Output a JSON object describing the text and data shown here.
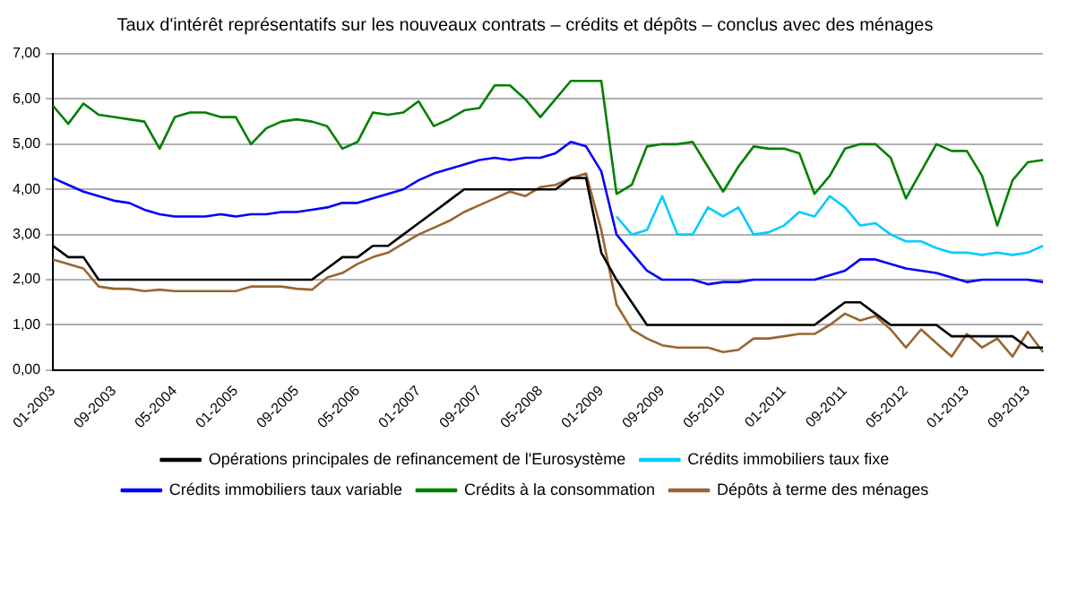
{
  "chart_data": {
    "type": "line",
    "title": "Taux d'intérêt représentatifs sur les nouveaux contrats – crédits et dépôts – conclus avec des ménages",
    "categories": [
      "01-2003",
      null,
      null,
      null,
      "09-2003",
      null,
      null,
      null,
      "05-2004",
      null,
      null,
      null,
      "01-2005",
      null,
      null,
      null,
      "09-2005",
      null,
      null,
      null,
      "05-2006",
      null,
      null,
      null,
      "01-2007",
      null,
      null,
      null,
      "09-2007",
      null,
      null,
      null,
      "05-2008",
      null,
      null,
      null,
      "01-2009",
      null,
      null,
      null,
      "09-2009",
      null,
      null,
      null,
      "05-2010",
      null,
      null,
      null,
      "01-2011",
      null,
      null,
      null,
      "09-2011",
      null,
      null,
      null,
      "05-2012",
      null,
      null,
      null,
      "01-2013",
      null,
      null,
      null,
      "09-2013",
      null
    ],
    "series": [
      {
        "name": "Opérations principales de refinancement de l'Eurosystème",
        "color": "#000000",
        "values": [
          2.75,
          2.5,
          2.5,
          2,
          2,
          2,
          2,
          2,
          2,
          2,
          2,
          2,
          2,
          2,
          2,
          2,
          2,
          2,
          2.25,
          2.5,
          2.5,
          2.75,
          2.75,
          3,
          3.25,
          3.5,
          3.75,
          4,
          4,
          4,
          4,
          4,
          4,
          4,
          4.25,
          4.25,
          2.6,
          2,
          1.5,
          1,
          1,
          1,
          1,
          1,
          1,
          1,
          1,
          1,
          1,
          1,
          1,
          1.25,
          1.5,
          1.5,
          1.25,
          1,
          1,
          1,
          1,
          0.75,
          0.75,
          0.75,
          0.75,
          0.75,
          0.5,
          0.5
        ]
      },
      {
        "name": "Crédits immobiliers taux fixe",
        "color": "#00ccff",
        "values": [
          null,
          null,
          null,
          null,
          null,
          null,
          null,
          null,
          null,
          null,
          null,
          null,
          null,
          null,
          null,
          null,
          null,
          null,
          null,
          null,
          null,
          null,
          null,
          null,
          null,
          null,
          null,
          null,
          null,
          null,
          null,
          null,
          null,
          null,
          null,
          null,
          null,
          3.4,
          3.0,
          3.1,
          3.85,
          3.0,
          3.0,
          3.6,
          3.4,
          3.6,
          3.0,
          3.05,
          3.2,
          3.5,
          3.4,
          3.85,
          3.6,
          3.2,
          3.25,
          3.0,
          2.85,
          2.85,
          2.7,
          2.6,
          2.6,
          2.55,
          2.6,
          2.55,
          2.6,
          2.75
        ]
      },
      {
        "name": "Crédits immobiliers taux variable",
        "color": "#0000ff",
        "values": [
          4.25,
          4.1,
          3.95,
          3.85,
          3.75,
          3.7,
          3.55,
          3.45,
          3.4,
          3.4,
          3.4,
          3.45,
          3.4,
          3.45,
          3.45,
          3.5,
          3.5,
          3.55,
          3.6,
          3.7,
          3.7,
          3.8,
          3.9,
          4.0,
          4.2,
          4.35,
          4.45,
          4.55,
          4.65,
          4.7,
          4.65,
          4.7,
          4.7,
          4.8,
          5.05,
          4.95,
          4.4,
          3.0,
          2.6,
          2.2,
          2.0,
          2.0,
          2.0,
          1.9,
          1.95,
          1.95,
          2.0,
          2.0,
          2.0,
          2.0,
          2.0,
          2.1,
          2.2,
          2.45,
          2.45,
          2.35,
          2.25,
          2.2,
          2.15,
          2.05,
          1.95,
          2.0,
          2.0,
          2.0,
          2.0,
          1.95
        ]
      },
      {
        "name": "Crédits à la consommation",
        "color": "#008000",
        "values": [
          5.85,
          5.45,
          5.9,
          5.65,
          5.6,
          5.55,
          5.5,
          4.9,
          5.6,
          5.7,
          5.7,
          5.6,
          5.6,
          5.0,
          5.35,
          5.5,
          5.55,
          5.5,
          5.4,
          4.9,
          5.05,
          5.7,
          5.65,
          5.7,
          5.95,
          5.4,
          5.55,
          5.75,
          5.8,
          6.3,
          6.3,
          6.0,
          5.6,
          6.0,
          6.4,
          6.4,
          6.4,
          3.9,
          4.1,
          4.95,
          5.0,
          5.0,
          5.05,
          4.5,
          3.95,
          4.5,
          4.95,
          4.9,
          4.9,
          4.8,
          3.9,
          4.3,
          4.9,
          5.0,
          5.0,
          4.7,
          3.8,
          4.4,
          5.0,
          4.85,
          4.85,
          4.3,
          3.2,
          4.2,
          4.6,
          4.65
        ]
      },
      {
        "name": "Dépôts à terme des ménages",
        "color": "#996633",
        "values": [
          2.45,
          2.35,
          2.25,
          1.85,
          1.8,
          1.8,
          1.75,
          1.78,
          1.75,
          1.75,
          1.75,
          1.75,
          1.75,
          1.85,
          1.85,
          1.85,
          1.8,
          1.78,
          2.05,
          2.15,
          2.35,
          2.5,
          2.6,
          2.8,
          3.0,
          3.15,
          3.3,
          3.5,
          3.65,
          3.8,
          3.95,
          3.85,
          4.05,
          4.1,
          4.25,
          4.35,
          3.1,
          1.45,
          0.9,
          0.7,
          0.55,
          0.5,
          0.5,
          0.5,
          0.4,
          0.45,
          0.7,
          0.7,
          0.75,
          0.8,
          0.8,
          1.0,
          1.25,
          1.1,
          1.2,
          0.9,
          0.5,
          0.9,
          0.6,
          0.3,
          0.8,
          0.5,
          0.7,
          0.3,
          0.85,
          0.4
        ]
      }
    ],
    "ylim": [
      0,
      7
    ],
    "yticks": [
      {
        "value": 0,
        "label": "0,00"
      },
      {
        "value": 1,
        "label": "1,00"
      },
      {
        "value": 2,
        "label": "2,00"
      },
      {
        "value": 3,
        "label": "3,00"
      },
      {
        "value": 4,
        "label": "4,00"
      },
      {
        "value": 5,
        "label": "5,00"
      },
      {
        "value": 6,
        "label": "6,00"
      },
      {
        "value": 7,
        "label": "7,00"
      }
    ],
    "grid": "y",
    "legend": "bottom",
    "marker": "none",
    "line_style": "solid"
  }
}
